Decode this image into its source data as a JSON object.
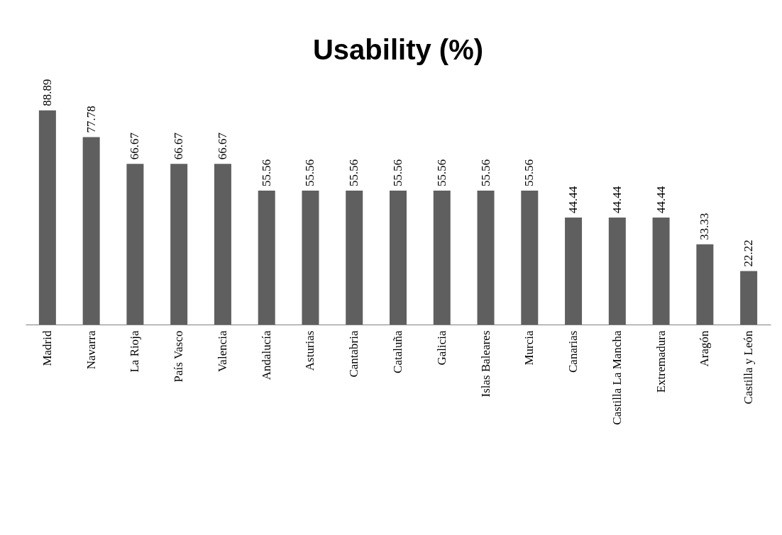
{
  "chart_data": {
    "type": "bar",
    "title": "Usability (%)",
    "categories": [
      "Madrid",
      "Navarra",
      "La Rioja",
      "País Vasco",
      "Valencia",
      "Andalucía",
      "Asturias",
      "Cantabria",
      "Cataluña",
      "Galicia",
      "Islas Baleares",
      "Murcia",
      "Canarias",
      "Castilla La Mancha",
      "Extremadura",
      "Aragón",
      "Castilla y León"
    ],
    "values": [
      88.89,
      77.78,
      66.67,
      66.67,
      66.67,
      55.56,
      55.56,
      55.56,
      55.56,
      55.56,
      55.56,
      55.56,
      44.44,
      44.44,
      44.44,
      33.33,
      22.22
    ],
    "color": "#5f5f5f",
    "data_labels": true
  }
}
